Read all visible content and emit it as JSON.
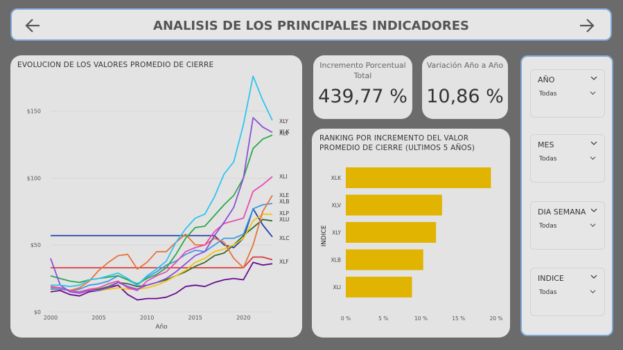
{
  "header": {
    "title": "ANALISIS DE LOS PRINCIPALES INDICADORES",
    "back_icon": "arrow-left-icon",
    "forward_icon": "arrow-right-icon"
  },
  "kpis": [
    {
      "label": "Incremento Porcentual Total",
      "value": "439,77 %"
    },
    {
      "label": "Variación Año a Año",
      "value": "10,86 %"
    }
  ],
  "filters": [
    {
      "name": "AÑO",
      "value": "Todas"
    },
    {
      "name": "MES",
      "value": "Todas"
    },
    {
      "name": "DIA SEMANA",
      "value": "Todas"
    },
    {
      "name": "INDICE",
      "value": "Todas"
    }
  ],
  "chart_data": [
    {
      "type": "line",
      "title": "EVOLUCION DE LOS VALORES PROMEDIO DE CIERRE",
      "xlabel": "Año",
      "ylabel": "",
      "xlim": [
        2000,
        2023
      ],
      "ylim": [
        0,
        175
      ],
      "xticks": [
        "2000",
        "2005",
        "2010",
        "2015",
        "2020"
      ],
      "yticks": [
        "$0",
        "$50",
        "$100",
        "$150"
      ],
      "x": [
        2000,
        2001,
        2002,
        2003,
        2004,
        2005,
        2006,
        2007,
        2008,
        2009,
        2010,
        2011,
        2012,
        2013,
        2014,
        2015,
        2016,
        2017,
        2018,
        2019,
        2020,
        2021,
        2022,
        2023
      ],
      "series": [
        {
          "name": "XLY",
          "color": "#2ec4ef",
          "values": [
            20,
            20,
            19,
            20,
            24,
            25,
            27,
            29,
            25,
            20,
            27,
            32,
            38,
            52,
            62,
            70,
            73,
            86,
            103,
            112,
            140,
            176,
            158,
            143
          ]
        },
        {
          "name": "XLK",
          "color": "#8a4fd6",
          "values": [
            40,
            20,
            15,
            14,
            16,
            16,
            18,
            22,
            19,
            17,
            20,
            22,
            25,
            30,
            36,
            42,
            45,
            57,
            67,
            78,
            100,
            145,
            138,
            134
          ]
        },
        {
          "name": "XLV",
          "color": "#2aa84a",
          "values": [
            27,
            25,
            23,
            22,
            24,
            25,
            26,
            27,
            24,
            21,
            25,
            28,
            33,
            43,
            55,
            63,
            64,
            72,
            80,
            87,
            100,
            122,
            129,
            132
          ]
        },
        {
          "name": "XLI",
          "color": "#e84ab5",
          "values": [
            19,
            18,
            16,
            15,
            17,
            18,
            21,
            23,
            18,
            16,
            23,
            27,
            30,
            37,
            45,
            48,
            50,
            60,
            66,
            68,
            70,
            90,
            95,
            101
          ]
        },
        {
          "name": "XLE",
          "color": "#e8723a",
          "values": [
            18,
            18,
            16,
            18,
            23,
            31,
            37,
            42,
            43,
            32,
            37,
            45,
            45,
            52,
            58,
            50,
            50,
            55,
            52,
            40,
            33,
            50,
            75,
            87
          ]
        },
        {
          "name": "XLB",
          "color": "#3a9ae8",
          "values": [
            17,
            17,
            16,
            17,
            20,
            21,
            23,
            27,
            24,
            20,
            26,
            30,
            35,
            38,
            43,
            46,
            45,
            50,
            55,
            55,
            58,
            77,
            80,
            81
          ]
        },
        {
          "name": "XLP",
          "color": "#f2c40f",
          "values": [
            18,
            17,
            16,
            15,
            16,
            16,
            17,
            18,
            17,
            17,
            18,
            20,
            23,
            27,
            31,
            37,
            40,
            45,
            47,
            50,
            55,
            68,
            73,
            73
          ]
        },
        {
          "name": "XLU",
          "color": "#356b2f",
          "values": [
            18,
            18,
            16,
            15,
            16,
            17,
            19,
            22,
            21,
            19,
            20,
            22,
            24,
            27,
            30,
            34,
            37,
            42,
            44,
            50,
            57,
            63,
            69,
            68
          ]
        },
        {
          "name": "XLC",
          "color": "#1c3fa8",
          "values": [
            57,
            57,
            57,
            57,
            57,
            57,
            57,
            57,
            57,
            57,
            57,
            57,
            57,
            57,
            57,
            57,
            57,
            57,
            50,
            48,
            55,
            77,
            65,
            56
          ]
        },
        {
          "name": "XLF",
          "color": "#d93a3a",
          "values": [
            33,
            33,
            33,
            33,
            33,
            33,
            33,
            33,
            33,
            33,
            33,
            33,
            33,
            33,
            33,
            33,
            33,
            33,
            33,
            33,
            33,
            41,
            41,
            39
          ]
        },
        {
          "name": "",
          "color": "#680a8e",
          "values": [
            15,
            16,
            13,
            12,
            15,
            16,
            18,
            20,
            13,
            9,
            10,
            10,
            11,
            14,
            19,
            20,
            19,
            22,
            24,
            25,
            24,
            37,
            35,
            36
          ]
        }
      ]
    },
    {
      "type": "bar",
      "title": "RANKING POR INCREMENTO DEL VALOR PROMEDIO DE CIERRE (ULTIMOS 5 AÑOS)",
      "ylabel": "INDICE",
      "xlabel": "",
      "xlim": [
        0,
        20
      ],
      "xticks": [
        "0 %",
        "5 %",
        "10 %",
        "15 %",
        "20 %"
      ],
      "categories": [
        "XLK",
        "XLV",
        "XLY",
        "XLB",
        "XLI"
      ],
      "values": [
        19.3,
        12.8,
        12.0,
        10.3,
        8.8
      ],
      "bar_color": "#e0b400"
    }
  ]
}
